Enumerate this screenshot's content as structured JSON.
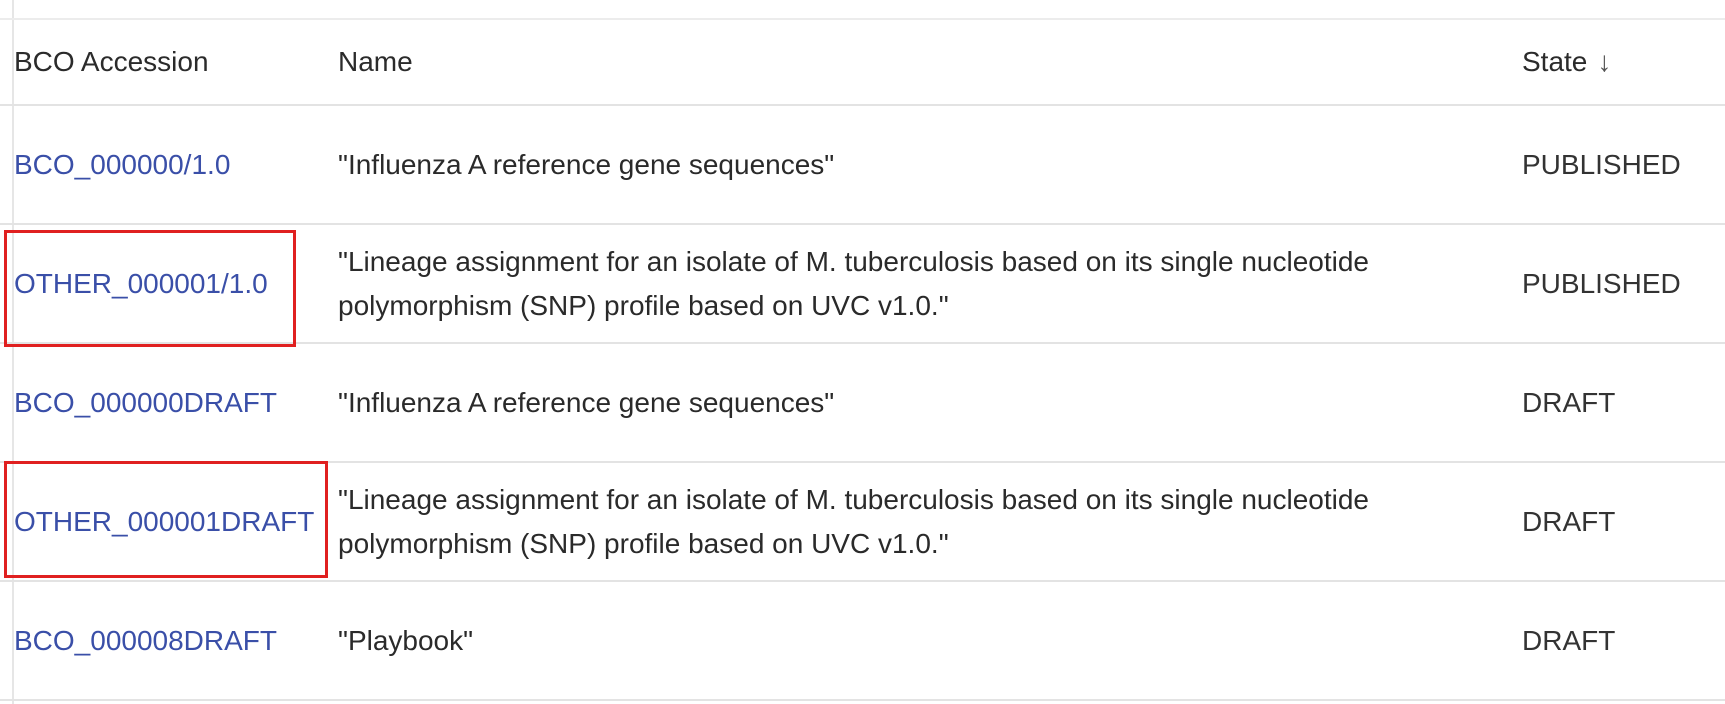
{
  "table": {
    "columns": {
      "accession": "BCO Accession",
      "name": "Name",
      "state": "State",
      "sort_indicator": "↓"
    },
    "rows": [
      {
        "accession": "BCO_000000/1.0",
        "name": "\"Influenza A reference gene sequences\"",
        "state": "PUBLISHED"
      },
      {
        "accession": "OTHER_000001/1.0",
        "name": "\"Lineage assignment for an isolate of M. tuberculosis based on its single nucleotide polymorphism (SNP) profile based on UVC v1.0.\"",
        "state": "PUBLISHED"
      },
      {
        "accession": "BCO_000000DRAFT",
        "name": "\"Influenza A reference gene sequences\"",
        "state": "DRAFT"
      },
      {
        "accession": "OTHER_000001DRAFT",
        "name": "\"Lineage assignment for an isolate of M. tuberculosis based on its single nucleotide polymorphism (SNP) profile based on UVC v1.0.\"",
        "state": "DRAFT"
      },
      {
        "accession": "BCO_000008DRAFT",
        "name": "\"Playbook\"",
        "state": "DRAFT"
      }
    ]
  },
  "colors": {
    "link": "#3a4fa8",
    "highlight": "#e02020",
    "divider": "#e3e3e3"
  }
}
